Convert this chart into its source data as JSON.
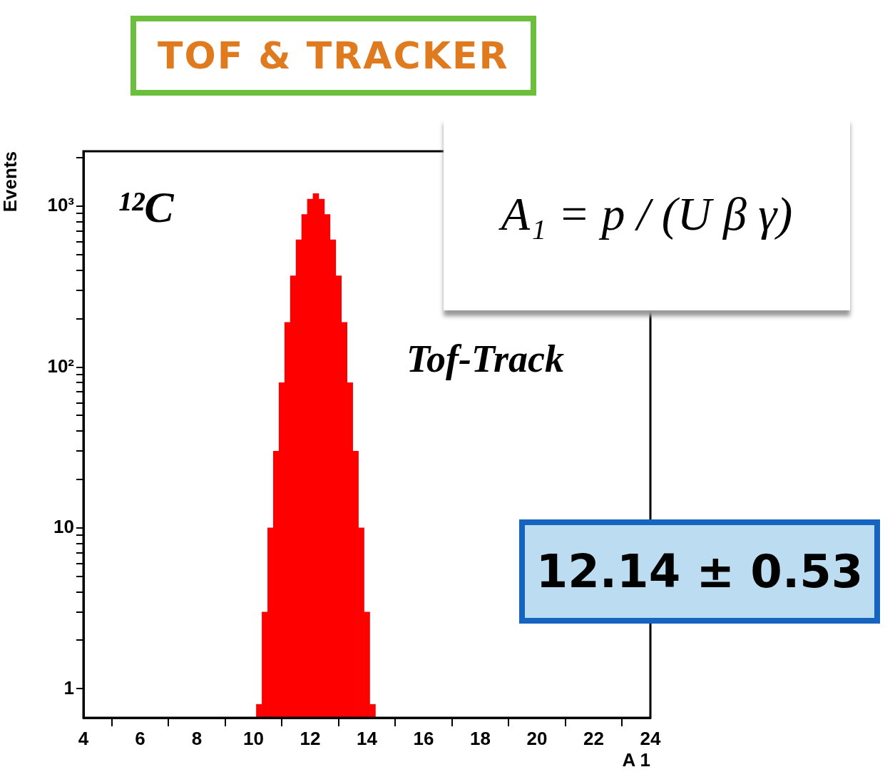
{
  "chart_data": {
    "type": "histogram",
    "xlabel": "A 1",
    "ylabel": "Events",
    "color": "#ff0000",
    "bins": [
      10.1,
      10.3,
      10.5,
      10.7,
      10.9,
      11.1,
      11.3,
      11.5,
      11.7,
      11.9,
      12.1,
      12.3,
      12.5,
      12.7,
      12.9,
      13.1,
      13.3,
      13.5,
      13.7,
      13.9,
      14.1,
      14.3
    ],
    "values": [
      0.8,
      3,
      10,
      30,
      80,
      190,
      370,
      620,
      890,
      1110,
      1200,
      1110,
      890,
      620,
      370,
      190,
      80,
      30,
      10,
      3,
      0.8
    ],
    "log": "y",
    "xlim": [
      4,
      24
    ],
    "xticks": [
      4,
      6,
      8,
      10,
      12,
      14,
      16,
      18,
      20,
      22,
      24
    ],
    "ylim": [
      0.66,
      2200
    ],
    "yticks": [
      {
        "value": 1,
        "label": "1"
      },
      {
        "value": 2,
        "label": null
      },
      {
        "value": 3,
        "label": null
      },
      {
        "value": 4,
        "label": null
      },
      {
        "value": 5,
        "label": null
      },
      {
        "value": 6,
        "label": null
      },
      {
        "value": 7,
        "label": null
      },
      {
        "value": 8,
        "label": null
      },
      {
        "value": 9,
        "label": null
      },
      {
        "value": 10,
        "label": "10"
      },
      {
        "value": 20,
        "label": null
      },
      {
        "value": 30,
        "label": null
      },
      {
        "value": 40,
        "label": null
      },
      {
        "value": 50,
        "label": null
      },
      {
        "value": 60,
        "label": null
      },
      {
        "value": 70,
        "label": null
      },
      {
        "value": 80,
        "label": null
      },
      {
        "value": 90,
        "label": null
      },
      {
        "value": 100,
        "label": "10²"
      },
      {
        "value": 200,
        "label": null
      },
      {
        "value": 300,
        "label": null
      },
      {
        "value": 400,
        "label": null
      },
      {
        "value": 500,
        "label": null
      },
      {
        "value": 600,
        "label": null
      },
      {
        "value": 700,
        "label": null
      },
      {
        "value": 800,
        "label": null
      },
      {
        "value": 900,
        "label": null
      },
      {
        "value": 1000,
        "label": "10³"
      },
      {
        "value": 2000,
        "label": null
      }
    ],
    "grid": false,
    "legend": false,
    "annotations": [
      "TOF & TRACKER",
      "A₁ = p / (U β γ)",
      "¹²C",
      "Tof-Track",
      "12.14 ± 0.53"
    ]
  }
}
